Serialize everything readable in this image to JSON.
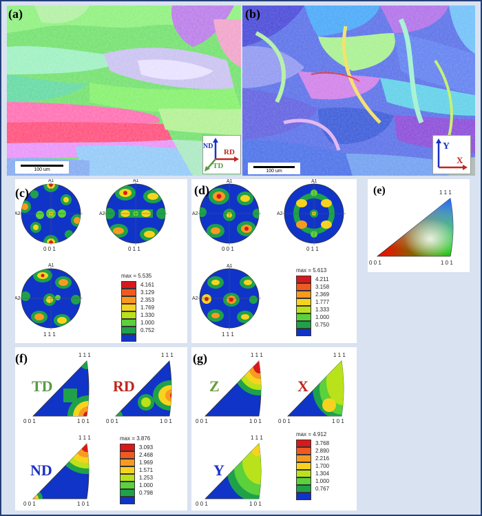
{
  "panels": {
    "a": {
      "label": "(a)",
      "scale_bar": "100 um",
      "axes": {
        "nd": "ND",
        "rd": "RD",
        "td": "TD"
      }
    },
    "b": {
      "label": "(b)",
      "scale_bar": "100 um",
      "axes": {
        "y": "Y",
        "x": "X"
      }
    },
    "c": {
      "label": "(c)",
      "axis_top": "A1",
      "axis_left": "A2",
      "poles": [
        "0 0 1",
        "0 1 1",
        "1 1 1"
      ],
      "legend": {
        "max": "max = 5.535",
        "levels": [
          "4.161",
          "3.129",
          "2.353",
          "1.769",
          "1.330",
          "1.000",
          "0.752"
        ]
      }
    },
    "d": {
      "label": "(d)",
      "axis_top": "A1",
      "axis_left": "A2",
      "poles": [
        "0 0 1",
        "0 1 1",
        "1 1 1"
      ],
      "legend": {
        "max": "max = 5.613",
        "levels": [
          "4.211",
          "3.158",
          "2.369",
          "1.777",
          "1.333",
          "1.000",
          "0.750"
        ]
      }
    },
    "e": {
      "label": "(e)",
      "corners": {
        "top": "1 1 1",
        "left": "0 0 1",
        "right": "1 0 1"
      }
    },
    "f": {
      "label": "(f)",
      "corners": {
        "top": "1 1 1",
        "left": "0 0 1",
        "right": "1 0 1"
      },
      "ipf_labels": [
        "TD",
        "RD",
        "ND"
      ],
      "legend": {
        "max": "max = 3.876",
        "levels": [
          "3.093",
          "2.468",
          "1.969",
          "1.571",
          "1.253",
          "1.000",
          "0.798"
        ]
      }
    },
    "g": {
      "label": "(g)",
      "corners": {
        "top": "1 1 1",
        "left": "0 0 1",
        "right": "1 0 1"
      },
      "ipf_labels": [
        "Z",
        "X",
        "Y"
      ],
      "legend": {
        "max": "max = 4.912",
        "levels": [
          "3.768",
          "2.890",
          "2.216",
          "1.700",
          "1.304",
          "1.000",
          "0.767"
        ]
      }
    }
  },
  "colors": {
    "frame": "#243f78",
    "background": "#d9e2f1",
    "contour": [
      "#d7191c",
      "#f05a22",
      "#f89a21",
      "#f7d31f",
      "#b9e21b",
      "#5bd13b",
      "#1fa14a",
      "#1034c8"
    ],
    "td": "#5a9a44",
    "rd": "#c0261c",
    "nd": "#1b31c4",
    "z": "#6c9a3c",
    "x": "#c0261c",
    "y": "#1b31c4"
  }
}
